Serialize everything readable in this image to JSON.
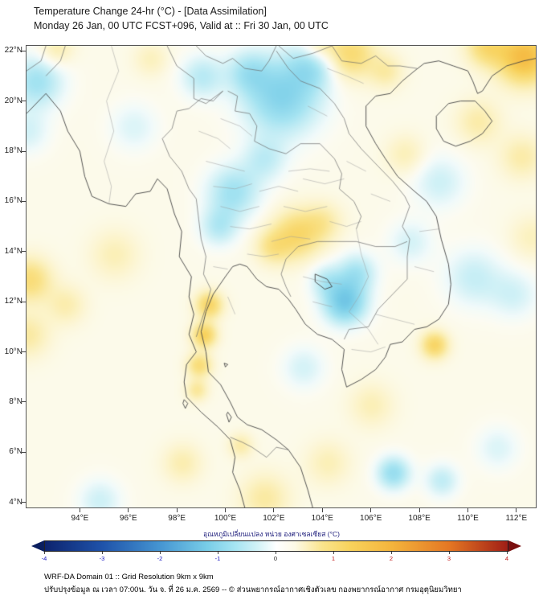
{
  "header": {
    "title": "Temperature Change 24-hr (°C) - [Data Assimilation]",
    "subtitle": "Monday 26 Jan, 00 UTC FCST+096, Valid at :: Fri 30 Jan, 00 UTC"
  },
  "axes": {
    "y_ticks": [
      {
        "lat": 22,
        "label": "22°N"
      },
      {
        "lat": 20,
        "label": "20°N"
      },
      {
        "lat": 18,
        "label": "18°N"
      },
      {
        "lat": 16,
        "label": "16°N"
      },
      {
        "lat": 14,
        "label": "14°N"
      },
      {
        "lat": 12,
        "label": "12°N"
      },
      {
        "lat": 10,
        "label": "10°N"
      },
      {
        "lat": 8,
        "label": "8°N"
      },
      {
        "lat": 6,
        "label": "6°N"
      },
      {
        "lat": 4,
        "label": "4°N"
      }
    ],
    "x_ticks": [
      {
        "lon": 94,
        "label": "94°E"
      },
      {
        "lon": 96,
        "label": "96°E"
      },
      {
        "lon": 98,
        "label": "98°E"
      },
      {
        "lon": 100,
        "label": "100°E"
      },
      {
        "lon": 102,
        "label": "102°E"
      },
      {
        "lon": 104,
        "label": "104°E"
      },
      {
        "lon": 106,
        "label": "106°E"
      },
      {
        "lon": 108,
        "label": "108°E"
      },
      {
        "lon": 110,
        "label": "110°E"
      },
      {
        "lon": 112,
        "label": "112°E"
      }
    ]
  },
  "colorbar": {
    "label": "อุณหภูมิเปลี่ยนแปลง หน่วย องศาเซลเซียส (°C)",
    "tick_values": [
      -4,
      -3,
      -2,
      -1,
      0,
      1,
      2,
      3,
      4
    ],
    "negative_color": "#1515c0",
    "positive_color": "#c01515",
    "zero_color": "#222222"
  },
  "footer": {
    "line1": "WRF-DA Domain 01 :: Grid Resolution 9km x 9km",
    "line2": "ปรับปรุงข้อมูล ณ เวลา 07:00น. วัน จ. ที่ 26 ม.ค. 2569 -- © ส่วนพยากรณ์อากาศเชิงตัวเลข กองพยากรณ์อากาศ กรมอุตุนิยมวิทยา"
  },
  "chart_data": {
    "type": "heatmap",
    "title": "Temperature Change 24-hr (°C) - [Data Assimilation]",
    "model": "WRF-DA Domain 01",
    "grid_resolution": "9km x 9km",
    "init_time": "Monday 26 Jan, 00 UTC",
    "forecast_hour": 96,
    "valid_time": "Fri 30 Jan, 00 UTC",
    "units": "°C",
    "colorbar_range": [
      -4,
      4
    ],
    "domain": {
      "lon_range": [
        91.8,
        112.8
      ],
      "lat_range": [
        3.8,
        22.2
      ]
    },
    "base_value": 0.08,
    "color_scale": [
      [
        -4,
        13,
        35,
        110
      ],
      [
        -3,
        31,
        83,
        170
      ],
      [
        -2,
        70,
        150,
        210
      ],
      [
        -1.2,
        120,
        205,
        232
      ],
      [
        -0.7,
        165,
        228,
        242
      ],
      [
        -0.35,
        210,
        242,
        247
      ],
      [
        -0.12,
        242,
        251,
        251
      ],
      [
        0,
        252,
        252,
        244
      ],
      [
        0.12,
        253,
        250,
        230
      ],
      [
        0.4,
        252,
        243,
        196
      ],
      [
        0.8,
        250,
        228,
        140
      ],
      [
        1.3,
        248,
        210,
        92
      ],
      [
        2,
        244,
        180,
        60
      ],
      [
        3,
        228,
        118,
        35
      ],
      [
        4,
        160,
        30,
        22
      ]
    ],
    "anomaly_blobs": [
      {
        "lon": 102.3,
        "lat": 20.2,
        "r": 1.6,
        "dt": -1.1
      },
      {
        "lon": 103.6,
        "lat": 21.5,
        "r": 1.0,
        "dt": -0.7
      },
      {
        "lon": 100.9,
        "lat": 21.2,
        "r": 0.9,
        "dt": -0.6
      },
      {
        "lon": 99.0,
        "lat": 21.0,
        "r": 0.9,
        "dt": -0.6
      },
      {
        "lon": 92.2,
        "lat": 20.8,
        "r": 1.1,
        "dt": -0.8
      },
      {
        "lon": 91.8,
        "lat": 18.8,
        "r": 0.9,
        "dt": -0.4
      },
      {
        "lon": 100.3,
        "lat": 16.4,
        "r": 1.1,
        "dt": -0.8
      },
      {
        "lon": 99.7,
        "lat": 15.0,
        "r": 0.8,
        "dt": -0.6
      },
      {
        "lon": 101.6,
        "lat": 17.7,
        "r": 0.9,
        "dt": -0.5
      },
      {
        "lon": 104.9,
        "lat": 12.0,
        "r": 0.9,
        "dt": -1.3
      },
      {
        "lon": 105.4,
        "lat": 13.2,
        "r": 0.8,
        "dt": -0.7
      },
      {
        "lon": 104.1,
        "lat": 12.9,
        "r": 0.7,
        "dt": -0.5
      },
      {
        "lon": 108.8,
        "lat": 16.8,
        "r": 1.1,
        "dt": -0.45
      },
      {
        "lon": 110.2,
        "lat": 13.0,
        "r": 1.2,
        "dt": -0.5
      },
      {
        "lon": 111.9,
        "lat": 12.3,
        "r": 1.0,
        "dt": -0.4
      },
      {
        "lon": 106.9,
        "lat": 5.2,
        "r": 0.7,
        "dt": -0.9
      },
      {
        "lon": 108.9,
        "lat": 4.9,
        "r": 0.7,
        "dt": -0.55
      },
      {
        "lon": 111.2,
        "lat": 6.2,
        "r": 0.9,
        "dt": -0.35
      },
      {
        "lon": 94.8,
        "lat": 4.1,
        "r": 0.9,
        "dt": -0.45
      },
      {
        "lon": 103.2,
        "lat": 9.4,
        "r": 0.9,
        "dt": -0.4
      },
      {
        "lon": 96.2,
        "lat": 19.0,
        "r": 1.0,
        "dt": -0.35
      },
      {
        "lon": 107.6,
        "lat": 14.4,
        "r": 0.9,
        "dt": -0.4
      },
      {
        "lon": 112.3,
        "lat": 21.8,
        "r": 1.1,
        "dt": 1.7
      },
      {
        "lon": 110.7,
        "lat": 22.2,
        "r": 0.8,
        "dt": 0.9
      },
      {
        "lon": 105.1,
        "lat": 21.9,
        "r": 1.0,
        "dt": 1.0
      },
      {
        "lon": 103.8,
        "lat": 22.3,
        "r": 0.7,
        "dt": 0.6
      },
      {
        "lon": 106.6,
        "lat": 21.2,
        "r": 0.7,
        "dt": 0.5
      },
      {
        "lon": 102.9,
        "lat": 14.7,
        "r": 1.0,
        "dt": 1.0
      },
      {
        "lon": 101.9,
        "lat": 14.2,
        "r": 0.7,
        "dt": 0.6
      },
      {
        "lon": 104.0,
        "lat": 15.2,
        "r": 0.8,
        "dt": 0.5
      },
      {
        "lon": 99.3,
        "lat": 11.9,
        "r": 0.55,
        "dt": 1.1
      },
      {
        "lon": 99.1,
        "lat": 10.7,
        "r": 0.5,
        "dt": 1.2
      },
      {
        "lon": 98.9,
        "lat": 9.5,
        "r": 0.5,
        "dt": 0.9
      },
      {
        "lon": 98.8,
        "lat": 8.5,
        "r": 0.45,
        "dt": 0.6
      },
      {
        "lon": 108.6,
        "lat": 10.3,
        "r": 0.55,
        "dt": 1.1
      },
      {
        "lon": 91.9,
        "lat": 12.9,
        "r": 0.9,
        "dt": 0.9
      },
      {
        "lon": 91.8,
        "lat": 10.7,
        "r": 0.9,
        "dt": 0.55
      },
      {
        "lon": 93.4,
        "lat": 11.9,
        "r": 0.8,
        "dt": 0.45
      },
      {
        "lon": 95.4,
        "lat": 13.9,
        "r": 1.0,
        "dt": 0.4
      },
      {
        "lon": 101.6,
        "lat": 4.2,
        "r": 1.0,
        "dt": 0.55
      },
      {
        "lon": 104.2,
        "lat": 5.6,
        "r": 0.9,
        "dt": 0.4
      },
      {
        "lon": 98.2,
        "lat": 5.6,
        "r": 0.8,
        "dt": 0.45
      },
      {
        "lon": 110.4,
        "lat": 19.2,
        "r": 0.9,
        "dt": 0.5
      },
      {
        "lon": 112.2,
        "lat": 17.8,
        "r": 0.9,
        "dt": 0.5
      },
      {
        "lon": 106.0,
        "lat": 7.9,
        "r": 0.9,
        "dt": 0.4
      },
      {
        "lon": 93.0,
        "lat": 22.1,
        "r": 0.7,
        "dt": 0.5
      },
      {
        "lon": 107.4,
        "lat": 17.9,
        "r": 0.8,
        "dt": 0.4
      },
      {
        "lon": 112.6,
        "lat": 14.6,
        "r": 0.9,
        "dt": 0.35
      },
      {
        "lon": 96.9,
        "lat": 21.7,
        "r": 0.7,
        "dt": 0.35
      },
      {
        "lon": 100.6,
        "lat": 6.3,
        "r": 0.5,
        "dt": 0.5
      }
    ]
  }
}
